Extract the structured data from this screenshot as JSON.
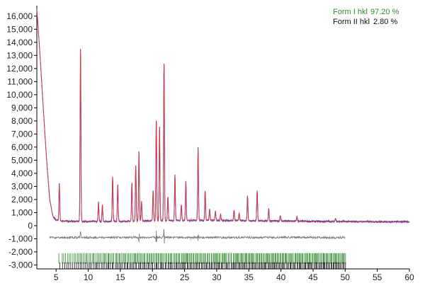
{
  "chart_data": {
    "type": "line",
    "title": "",
    "xlabel": "",
    "ylabel": "",
    "xlim": [
      2,
      60
    ],
    "ylim": [
      -3300,
      16800
    ],
    "grid": false,
    "legend_placement": "top-right",
    "x_ticks": [
      "5",
      "10",
      "15",
      "20",
      "25",
      "30",
      "35",
      "40",
      "45",
      "50",
      "55",
      "60"
    ],
    "y_ticks": [
      "16,000",
      "15,000",
      "14,000",
      "13,000",
      "12,000",
      "11,000",
      "10,000",
      "9,000",
      "8,000",
      "7,000",
      "6,000",
      "5,000",
      "4,000",
      "3,000",
      "2,000",
      "1,000",
      "0",
      "-1,000",
      "-2,000",
      "-3,000"
    ],
    "legend": [
      {
        "label": "Form I hkl",
        "value": "97.20 %",
        "color": "#2e8b2e"
      },
      {
        "label": "Form II hkl",
        "value": "2.80 %",
        "color": "#111111"
      }
    ],
    "background_curve": [
      [
        2,
        16500
      ],
      [
        2.5,
        13000
      ],
      [
        3,
        9000
      ],
      [
        3.5,
        5200
      ],
      [
        4,
        2000
      ],
      [
        4.5,
        700
      ],
      [
        5,
        420
      ],
      [
        6,
        360
      ],
      [
        8,
        330
      ],
      [
        10,
        320
      ],
      [
        15,
        330
      ],
      [
        20,
        370
      ],
      [
        25,
        400
      ],
      [
        30,
        400
      ],
      [
        35,
        380
      ],
      [
        40,
        350
      ],
      [
        45,
        330
      ],
      [
        50,
        320
      ],
      [
        55,
        300
      ],
      [
        60,
        300
      ]
    ],
    "series": [
      {
        "name": "",
        "role": "observed",
        "color": "#3b3bd6",
        "peaks": [
          [
            5.5,
            3200
          ],
          [
            8.8,
            13700
          ],
          [
            11.6,
            1800
          ],
          [
            12.2,
            1600
          ],
          [
            13.8,
            3800
          ],
          [
            14.6,
            3100
          ],
          [
            16.8,
            3300
          ],
          [
            17.4,
            4600
          ],
          [
            17.9,
            5700
          ],
          [
            18.3,
            1900
          ],
          [
            20.1,
            2700
          ],
          [
            20.6,
            8200
          ],
          [
            21.1,
            7700
          ],
          [
            21.8,
            12500
          ],
          [
            22.4,
            2200
          ],
          [
            23.5,
            3900
          ],
          [
            24.5,
            1600
          ],
          [
            25.2,
            3400
          ],
          [
            27.1,
            6000
          ],
          [
            28.2,
            2700
          ],
          [
            28.9,
            1300
          ],
          [
            29.8,
            1100
          ],
          [
            30.6,
            900
          ],
          [
            32.7,
            1200
          ],
          [
            33.5,
            1000
          ],
          [
            34.8,
            2300
          ],
          [
            36.3,
            2700
          ],
          [
            38.1,
            1300
          ],
          [
            39.9,
            800
          ],
          [
            42.5,
            700
          ],
          [
            48.5,
            550
          ]
        ]
      },
      {
        "name": "",
        "role": "calculated",
        "color": "#d63b3b",
        "peaks": [
          [
            5.5,
            3150
          ],
          [
            8.8,
            13650
          ],
          [
            11.6,
            1780
          ],
          [
            12.2,
            1580
          ],
          [
            13.8,
            3780
          ],
          [
            14.6,
            3080
          ],
          [
            16.8,
            3280
          ],
          [
            17.4,
            4580
          ],
          [
            17.9,
            5680
          ],
          [
            18.3,
            1880
          ],
          [
            20.1,
            2680
          ],
          [
            20.6,
            8150
          ],
          [
            21.1,
            7650
          ],
          [
            21.8,
            12450
          ],
          [
            22.4,
            2180
          ],
          [
            23.5,
            3880
          ],
          [
            24.5,
            1580
          ],
          [
            25.2,
            3380
          ],
          [
            27.1,
            5950
          ],
          [
            28.2,
            2680
          ],
          [
            28.9,
            1280
          ],
          [
            29.8,
            1080
          ],
          [
            30.6,
            880
          ],
          [
            32.7,
            1180
          ],
          [
            33.5,
            980
          ],
          [
            34.8,
            2280
          ],
          [
            36.3,
            2680
          ],
          [
            38.1,
            1280
          ],
          [
            39.9,
            780
          ],
          [
            42.5,
            680
          ],
          [
            48.5,
            540
          ]
        ]
      },
      {
        "name": "",
        "role": "difference",
        "color": "#777777",
        "baseline": -900,
        "range": [
          4,
          50
        ],
        "spikes": [
          [
            8.8,
            500
          ],
          [
            17.9,
            350
          ],
          [
            20.6,
            -450
          ],
          [
            21.8,
            600
          ],
          [
            27.1,
            300
          ]
        ]
      }
    ],
    "reflection_ticks": [
      {
        "phase": "Form I hkl",
        "color": "#2e8b2e",
        "from": 5.5,
        "to": 50,
        "row_top": -2100,
        "row_bottom": -2900
      },
      {
        "phase": "Form II hkl",
        "color": "#111111",
        "from": 5.5,
        "to": 50,
        "row_top": -2800,
        "row_bottom": -3300
      }
    ]
  }
}
